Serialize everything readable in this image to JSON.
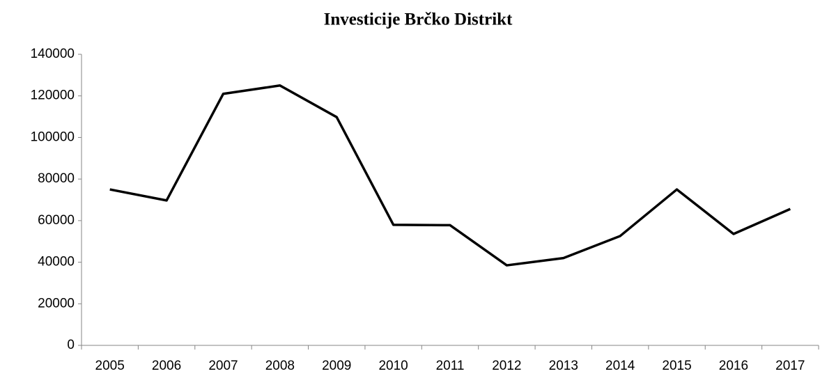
{
  "chart_data": {
    "type": "line",
    "title": "Investicije Brčko Distrikt",
    "categories": [
      "2005",
      "2006",
      "2007",
      "2008",
      "2009",
      "2010",
      "2011",
      "2012",
      "2013",
      "2014",
      "2015",
      "2016",
      "2017"
    ],
    "values": [
      75000,
      69700,
      121000,
      125000,
      109800,
      58000,
      57800,
      38500,
      42000,
      52600,
      75000,
      53600,
      65600
    ],
    "color": "#000000",
    "ylim": [
      0,
      140000
    ],
    "yticks": [
      0,
      20000,
      40000,
      60000,
      80000,
      100000,
      120000,
      140000
    ],
    "grid": false
  }
}
